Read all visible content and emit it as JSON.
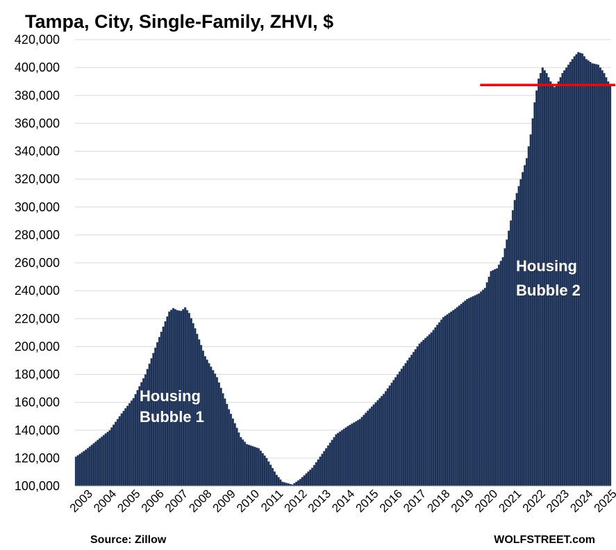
{
  "chart_data": {
    "type": "bar",
    "title": "Tampa, City, Single-Family, ZHVI, $",
    "xlabel": "",
    "ylabel": "",
    "ylim": [
      100000,
      420000
    ],
    "y_ticks": [
      100000,
      120000,
      140000,
      160000,
      180000,
      200000,
      220000,
      240000,
      260000,
      280000,
      300000,
      320000,
      340000,
      360000,
      380000,
      400000,
      420000
    ],
    "y_tick_labels": [
      "100,000",
      "120,000",
      "140,000",
      "160,000",
      "180,000",
      "200,000",
      "220,000",
      "240,000",
      "260,000",
      "280,000",
      "300,000",
      "320,000",
      "340,000",
      "360,000",
      "380,000",
      "400,000",
      "420,000"
    ],
    "x_tick_labels": [
      "2003",
      "2004",
      "2005",
      "2006",
      "2007",
      "2008",
      "2009",
      "2010",
      "2011",
      "2012",
      "2013",
      "2014",
      "2015",
      "2016",
      "2017",
      "2018",
      "2019",
      "2020",
      "2021",
      "2022",
      "2023",
      "2024",
      "2025"
    ],
    "frequency": "monthly",
    "start": "2003-01",
    "grid": true,
    "bar_color": "#1f3152",
    "anchors": [
      [
        "2003-01",
        121000
      ],
      [
        "2003-06",
        126000
      ],
      [
        "2003-12",
        133000
      ],
      [
        "2004-06",
        140000
      ],
      [
        "2004-12",
        152000
      ],
      [
        "2005-06",
        163000
      ],
      [
        "2005-12",
        180000
      ],
      [
        "2006-06",
        203000
      ],
      [
        "2006-10",
        218000
      ],
      [
        "2006-12",
        225000
      ],
      [
        "2007-02",
        227500
      ],
      [
        "2007-04",
        226000
      ],
      [
        "2007-06",
        225500
      ],
      [
        "2007-08",
        228000
      ],
      [
        "2007-10",
        224000
      ],
      [
        "2008-01",
        213000
      ],
      [
        "2008-06",
        193000
      ],
      [
        "2008-12",
        178000
      ],
      [
        "2009-06",
        155000
      ],
      [
        "2009-12",
        135000
      ],
      [
        "2010-03",
        130000
      ],
      [
        "2010-09",
        127000
      ],
      [
        "2011-01",
        120000
      ],
      [
        "2011-06",
        108000
      ],
      [
        "2011-09",
        103000
      ],
      [
        "2012-02",
        101000
      ],
      [
        "2012-06",
        105000
      ],
      [
        "2012-12",
        113000
      ],
      [
        "2013-06",
        125000
      ],
      [
        "2013-12",
        137000
      ],
      [
        "2014-06",
        143000
      ],
      [
        "2014-12",
        148000
      ],
      [
        "2015-06",
        157000
      ],
      [
        "2015-12",
        166000
      ],
      [
        "2016-06",
        178000
      ],
      [
        "2016-12",
        190000
      ],
      [
        "2017-06",
        202000
      ],
      [
        "2017-12",
        210000
      ],
      [
        "2018-06",
        221000
      ],
      [
        "2018-12",
        227000
      ],
      [
        "2019-06",
        234000
      ],
      [
        "2019-12",
        238000
      ],
      [
        "2020-03",
        242000
      ],
      [
        "2020-06",
        254000
      ],
      [
        "2020-09",
        256000
      ],
      [
        "2020-12",
        264000
      ],
      [
        "2021-03",
        283000
      ],
      [
        "2021-06",
        305000
      ],
      [
        "2021-09",
        320000
      ],
      [
        "2021-12",
        335000
      ],
      [
        "2022-02",
        352000
      ],
      [
        "2022-04",
        375000
      ],
      [
        "2022-06",
        392000
      ],
      [
        "2022-08",
        400000
      ],
      [
        "2022-10",
        396000
      ],
      [
        "2022-12",
        390000
      ],
      [
        "2023-02",
        386000
      ],
      [
        "2023-04",
        390000
      ],
      [
        "2023-06",
        396000
      ],
      [
        "2023-09",
        402000
      ],
      [
        "2023-12",
        408000
      ],
      [
        "2024-02",
        411000
      ],
      [
        "2024-04",
        410000
      ],
      [
        "2024-06",
        406000
      ],
      [
        "2024-09",
        403000
      ],
      [
        "2024-12",
        402000
      ],
      [
        "2025-03",
        396000
      ],
      [
        "2025-06",
        387000
      ]
    ],
    "annotations": [
      {
        "lines": [
          "Housing",
          "Bubble 1"
        ]
      },
      {
        "lines": [
          "Housing",
          "Bubble 2"
        ]
      }
    ],
    "reference_line": {
      "value": 387500,
      "from": "2020-01",
      "to": "2025-06",
      "color": "#ff0000"
    },
    "source": "Source: Zillow",
    "brand": "WOLFSTREET.com"
  }
}
